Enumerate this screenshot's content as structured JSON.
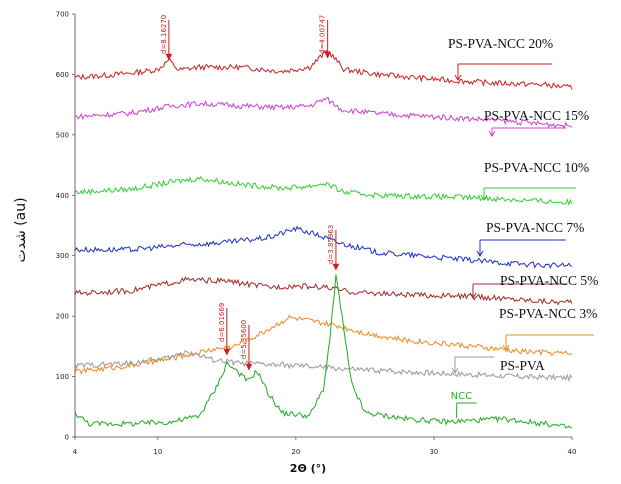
{
  "chart_data": {
    "type": "line",
    "title": "",
    "xlabel": "2Θ (°)",
    "ylabel": "شدت (au)",
    "xlim": [
      4,
      40
    ],
    "ylim": [
      0,
      700
    ],
    "x_ticks": [
      "4",
      "10",
      "20",
      "30",
      "40"
    ],
    "y_ticks": [
      "0",
      "100",
      "200",
      "300",
      "400",
      "500",
      "600",
      "700"
    ],
    "grid": false,
    "series": [
      {
        "name": "PS-PVA-NCC 20%",
        "color": "#cc2020",
        "points": [
          [
            4,
            595
          ],
          [
            6,
            598
          ],
          [
            8,
            602
          ],
          [
            10,
            608
          ],
          [
            10.8,
            624
          ],
          [
            11.5,
            607
          ],
          [
            13,
            612
          ],
          [
            16,
            612
          ],
          [
            19,
            605
          ],
          [
            21,
            612
          ],
          [
            22.3,
            640
          ],
          [
            23.5,
            608
          ],
          [
            26,
            600
          ],
          [
            30,
            592
          ],
          [
            34,
            586
          ],
          [
            38,
            583
          ],
          [
            40,
            578
          ]
        ]
      },
      {
        "name": "PS-PVA-NCC 15%",
        "color": "#d040d0",
        "points": [
          [
            4,
            530
          ],
          [
            8,
            536
          ],
          [
            11,
            548
          ],
          [
            13,
            552
          ],
          [
            16,
            548
          ],
          [
            19,
            545
          ],
          [
            21,
            548
          ],
          [
            22.2,
            560
          ],
          [
            23.3,
            542
          ],
          [
            26,
            535
          ],
          [
            30,
            530
          ],
          [
            34,
            525
          ],
          [
            38,
            518
          ],
          [
            40,
            515
          ]
        ]
      },
      {
        "name": "PS-PVA-NCC 10%",
        "color": "#30d030",
        "points": [
          [
            4,
            405
          ],
          [
            8,
            410
          ],
          [
            11,
            422
          ],
          [
            13,
            428
          ],
          [
            16,
            418
          ],
          [
            19,
            412
          ],
          [
            21,
            415
          ],
          [
            22.1,
            420
          ],
          [
            23.5,
            405
          ],
          [
            26,
            400
          ],
          [
            30,
            398
          ],
          [
            34,
            395
          ],
          [
            38,
            390
          ],
          [
            40,
            388
          ]
        ]
      },
      {
        "name": "PS-PVA-NCC 7%",
        "color": "#2030c0",
        "points": [
          [
            4,
            310
          ],
          [
            8,
            310
          ],
          [
            12,
            318
          ],
          [
            15,
            322
          ],
          [
            18,
            330
          ],
          [
            20,
            345
          ],
          [
            21.5,
            335
          ],
          [
            23,
            322
          ],
          [
            26,
            305
          ],
          [
            30,
            298
          ],
          [
            34,
            290
          ],
          [
            38,
            284
          ],
          [
            40,
            284
          ]
        ]
      },
      {
        "name": "PS-PVA-NCC 5%",
        "color": "#a02828",
        "points": [
          [
            4,
            238
          ],
          [
            8,
            242
          ],
          [
            12,
            260
          ],
          [
            15,
            258
          ],
          [
            18,
            248
          ],
          [
            20,
            250
          ],
          [
            22,
            248
          ],
          [
            24,
            240
          ],
          [
            28,
            235
          ],
          [
            32,
            233
          ],
          [
            36,
            228
          ],
          [
            40,
            222
          ]
        ]
      },
      {
        "name": "PS-PVA-NCC 3%",
        "color": "#ee8a20",
        "points": [
          [
            4,
            108
          ],
          [
            8,
            118
          ],
          [
            11,
            130
          ],
          [
            14,
            145
          ],
          [
            15.5,
            150
          ],
          [
            16.5,
            160
          ],
          [
            18,
            178
          ],
          [
            19.5,
            198
          ],
          [
            21,
            192
          ],
          [
            23,
            184
          ],
          [
            25,
            172
          ],
          [
            28,
            160
          ],
          [
            32,
            152
          ],
          [
            36,
            142
          ],
          [
            40,
            138
          ]
        ]
      },
      {
        "name": "PS-PVA",
        "color": "#999999",
        "points": [
          [
            4,
            118
          ],
          [
            8,
            122
          ],
          [
            11,
            132
          ],
          [
            12,
            142
          ],
          [
            14,
            128
          ],
          [
            16,
            122
          ],
          [
            20,
            118
          ],
          [
            24,
            112
          ],
          [
            28,
            108
          ],
          [
            32,
            104
          ],
          [
            36,
            100
          ],
          [
            40,
            98
          ]
        ]
      },
      {
        "name": "NCC",
        "color": "#22aa22",
        "points": [
          [
            4,
            40
          ],
          [
            5,
            22
          ],
          [
            8,
            22
          ],
          [
            11,
            25
          ],
          [
            13,
            35
          ],
          [
            14.2,
            80
          ],
          [
            15,
            122
          ],
          [
            15.8,
            108
          ],
          [
            16.5,
            92
          ],
          [
            17.2,
            110
          ],
          [
            18,
            72
          ],
          [
            19,
            40
          ],
          [
            21,
            35
          ],
          [
            22,
            80
          ],
          [
            22.5,
            170
          ],
          [
            22.9,
            268
          ],
          [
            23.4,
            190
          ],
          [
            24,
            90
          ],
          [
            25,
            40
          ],
          [
            28,
            30
          ],
          [
            31,
            25
          ],
          [
            35,
            30
          ],
          [
            38,
            22
          ],
          [
            40,
            15
          ]
        ]
      }
    ],
    "annotations": [
      {
        "text": "d=8.16270",
        "x": 10.8,
        "color": "#cc2020"
      },
      {
        "text": "d=4.00747",
        "x": 22.3,
        "color": "#cc2020"
      },
      {
        "text": "d=3.85963",
        "x": 22.9,
        "color": "#cc2020"
      },
      {
        "text": "d=6.01669",
        "x": 15.0,
        "color": "#cc2020"
      },
      {
        "text": "d=5.35600",
        "x": 16.6,
        "color": "#cc2020"
      },
      {
        "text": "NCC",
        "x": 31.5,
        "color": "#22aa22"
      }
    ]
  }
}
